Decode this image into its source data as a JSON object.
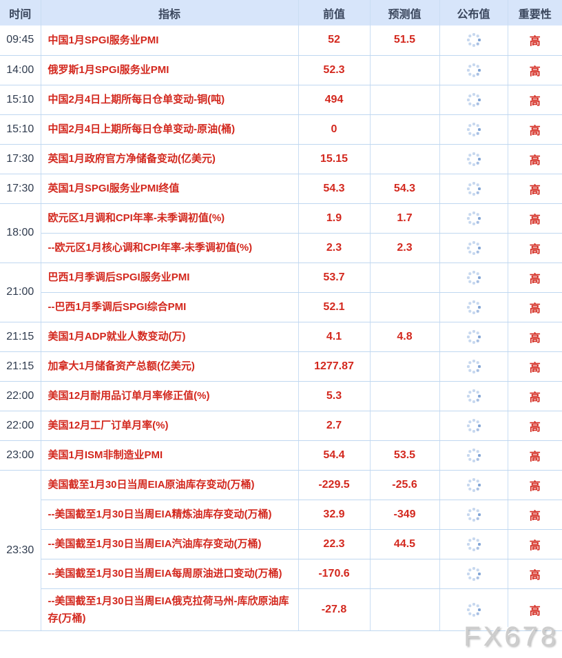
{
  "table": {
    "columns": [
      "时间",
      "指标",
      "前值",
      "预测值",
      "公布值",
      "重要性"
    ],
    "rows": [
      {
        "time": "09:45",
        "rowspan": 1,
        "indicator": "中国1月SPGI服务业PMI",
        "previous": "52",
        "forecast": "51.5",
        "published": "",
        "importance": "高"
      },
      {
        "time": "14:00",
        "rowspan": 1,
        "indicator": "俄罗斯1月SPGI服务业PMI",
        "previous": "52.3",
        "forecast": "",
        "published": "",
        "importance": "高"
      },
      {
        "time": "15:10",
        "rowspan": 1,
        "indicator": "中国2月4日上期所每日仓单变动-铜(吨)",
        "previous": "494",
        "forecast": "",
        "published": "",
        "importance": "高"
      },
      {
        "time": "15:10",
        "rowspan": 1,
        "indicator": "中国2月4日上期所每日仓单变动-原油(桶)",
        "previous": "0",
        "forecast": "",
        "published": "",
        "importance": "高"
      },
      {
        "time": "17:30",
        "rowspan": 1,
        "indicator": "英国1月政府官方净储备变动(亿美元)",
        "previous": "15.15",
        "forecast": "",
        "published": "",
        "importance": "高"
      },
      {
        "time": "17:30",
        "rowspan": 1,
        "indicator": "英国1月SPGI服务业PMI终值",
        "previous": "54.3",
        "forecast": "54.3",
        "published": "",
        "importance": "高"
      },
      {
        "time": "18:00",
        "rowspan": 2,
        "indicator": "欧元区1月调和CPI年率-未季调初值(%)",
        "previous": "1.9",
        "forecast": "1.7",
        "published": "",
        "importance": "高"
      },
      {
        "time": null,
        "rowspan": 1,
        "indicator": "--欧元区1月核心调和CPI年率-未季调初值(%)",
        "previous": "2.3",
        "forecast": "2.3",
        "published": "",
        "importance": "高"
      },
      {
        "time": "21:00",
        "rowspan": 2,
        "indicator": "巴西1月季调后SPGI服务业PMI",
        "previous": "53.7",
        "forecast": "",
        "published": "",
        "importance": "高"
      },
      {
        "time": null,
        "rowspan": 1,
        "indicator": "--巴西1月季调后SPGI综合PMI",
        "previous": "52.1",
        "forecast": "",
        "published": "",
        "importance": "高"
      },
      {
        "time": "21:15",
        "rowspan": 1,
        "indicator": "美国1月ADP就业人数变动(万)",
        "previous": "4.1",
        "forecast": "4.8",
        "published": "",
        "importance": "高"
      },
      {
        "time": "21:15",
        "rowspan": 1,
        "indicator": "加拿大1月储备资产总额(亿美元)",
        "previous": "1277.87",
        "forecast": "",
        "published": "",
        "importance": "高"
      },
      {
        "time": "22:00",
        "rowspan": 1,
        "indicator": "美国12月耐用品订单月率修正值(%)",
        "previous": "5.3",
        "forecast": "",
        "published": "",
        "importance": "高"
      },
      {
        "time": "22:00",
        "rowspan": 1,
        "indicator": "美国12月工厂订单月率(%)",
        "previous": "2.7",
        "forecast": "",
        "published": "",
        "importance": "高"
      },
      {
        "time": "23:00",
        "rowspan": 1,
        "indicator": "美国1月ISM非制造业PMI",
        "previous": "54.4",
        "forecast": "53.5",
        "published": "",
        "importance": "高"
      },
      {
        "time": "23:30",
        "rowspan": 5,
        "indicator": "美国截至1月30日当周EIA原油库存变动(万桶)",
        "previous": "-229.5",
        "forecast": "-25.6",
        "published": "",
        "importance": "高"
      },
      {
        "time": null,
        "rowspan": 1,
        "indicator": "--美国截至1月30日当周EIA精炼油库存变动(万桶)",
        "previous": "32.9",
        "forecast": "-349",
        "published": "",
        "importance": "高"
      },
      {
        "time": null,
        "rowspan": 1,
        "indicator": "--美国截至1月30日当周EIA汽油库存变动(万桶)",
        "previous": "22.3",
        "forecast": "44.5",
        "published": "",
        "importance": "高"
      },
      {
        "time": null,
        "rowspan": 1,
        "indicator": "--美国截至1月30日当周EIA每周原油进口变动(万桶)",
        "previous": "-170.6",
        "forecast": "",
        "published": "",
        "importance": "高"
      },
      {
        "time": null,
        "rowspan": 1,
        "indicator": "--美国截至1月30日当周EIA俄克拉荷马州-库欣原油库存(万桶)",
        "previous": "-27.8",
        "forecast": "",
        "published": "",
        "importance": "高"
      }
    ]
  },
  "watermark": "FX678",
  "icons": {
    "published_pending": "loading-spinner-icon"
  },
  "colors": {
    "header_bg": "#d7e5fa",
    "header_text": "#3a465c",
    "accent_red": "#d3281e",
    "row_border": "#bfd7f0",
    "column_border": "#c9ddf3",
    "spinner_dot": "#c7d8ef",
    "spinner_dot_active": "#82a5d6",
    "time_text": "#2f3b4e",
    "watermark_gray": "#cdcdcd"
  }
}
